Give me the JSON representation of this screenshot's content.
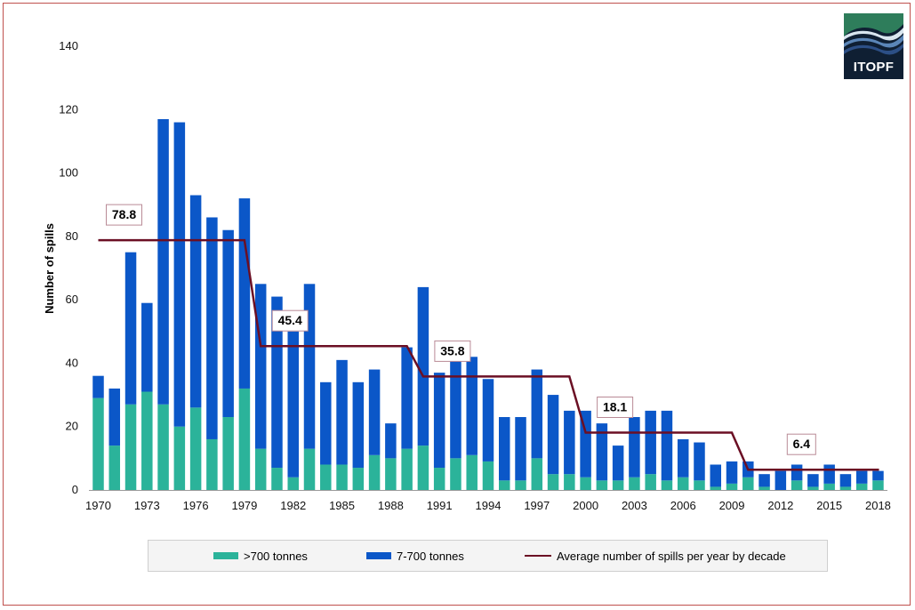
{
  "chart_data": {
    "type": "bar",
    "stacked": true,
    "ylabel": "Number of spills",
    "xlabel": "",
    "ylim": [
      0,
      140
    ],
    "yticks": [
      0,
      20,
      40,
      60,
      80,
      100,
      120,
      140
    ],
    "xtick_labels": [
      "1970",
      "1973",
      "1976",
      "1979",
      "1982",
      "1985",
      "1988",
      "1991",
      "1994",
      "1997",
      "2000",
      "2003",
      "2006",
      "2009",
      "2012",
      "2015",
      "2018"
    ],
    "categories": [
      1970,
      1971,
      1972,
      1973,
      1974,
      1975,
      1976,
      1977,
      1978,
      1979,
      1980,
      1981,
      1982,
      1983,
      1984,
      1985,
      1986,
      1987,
      1988,
      1989,
      1990,
      1991,
      1992,
      1993,
      1994,
      1995,
      1996,
      1997,
      1998,
      1999,
      2000,
      2001,
      2002,
      2003,
      2004,
      2005,
      2006,
      2007,
      2008,
      2009,
      2010,
      2011,
      2012,
      2013,
      2014,
      2015,
      2016,
      2017,
      2018
    ],
    "series": [
      {
        "name": ">700 tonnes",
        "color": "#2bb39a",
        "values": [
          29,
          14,
          27,
          31,
          27,
          20,
          26,
          16,
          23,
          32,
          13,
          7,
          4,
          13,
          8,
          8,
          7,
          11,
          10,
          13,
          14,
          7,
          10,
          11,
          9,
          3,
          3,
          10,
          5,
          5,
          4,
          3,
          3,
          4,
          5,
          3,
          4,
          3,
          1,
          2,
          4,
          1,
          0,
          3,
          1,
          2,
          1,
          2,
          3
        ]
      },
      {
        "name": "7-700 tonnes",
        "color": "#0b57c8",
        "values": [
          7,
          18,
          48,
          28,
          90,
          96,
          67,
          70,
          59,
          60,
          52,
          54,
          46,
          52,
          26,
          33,
          27,
          27,
          11,
          32,
          50,
          30,
          31,
          31,
          26,
          20,
          20,
          28,
          25,
          20,
          21,
          18,
          11,
          19,
          20,
          22,
          12,
          12,
          7,
          7,
          5,
          4,
          6,
          5,
          4,
          6,
          4,
          4,
          3
        ]
      }
    ],
    "average_line": {
      "name": "Average number of spills per year by decade",
      "color": "#6b0f24",
      "decades": [
        {
          "start": 1970,
          "end": 1979,
          "value": 78.8,
          "label": "78.8"
        },
        {
          "start": 1980,
          "end": 1989,
          "value": 45.4,
          "label": "45.4"
        },
        {
          "start": 1990,
          "end": 1999,
          "value": 35.8,
          "label": "35.8"
        },
        {
          "start": 2000,
          "end": 2009,
          "value": 18.1,
          "label": "18.1"
        },
        {
          "start": 2010,
          "end": 2018,
          "value": 6.4,
          "label": "6.4"
        }
      ]
    },
    "legend_placement": "bottom",
    "grid": false
  },
  "legend": {
    "items": [
      {
        "label": ">700 tonnes",
        "color": "#2bb39a"
      },
      {
        "label": "7-700 tonnes",
        "color": "#0b57c8"
      },
      {
        "label": "Average number of spills per year by decade",
        "color": "#6b0f24"
      }
    ]
  },
  "logo": {
    "text": "ITOPF",
    "name": "itopf-logo"
  }
}
